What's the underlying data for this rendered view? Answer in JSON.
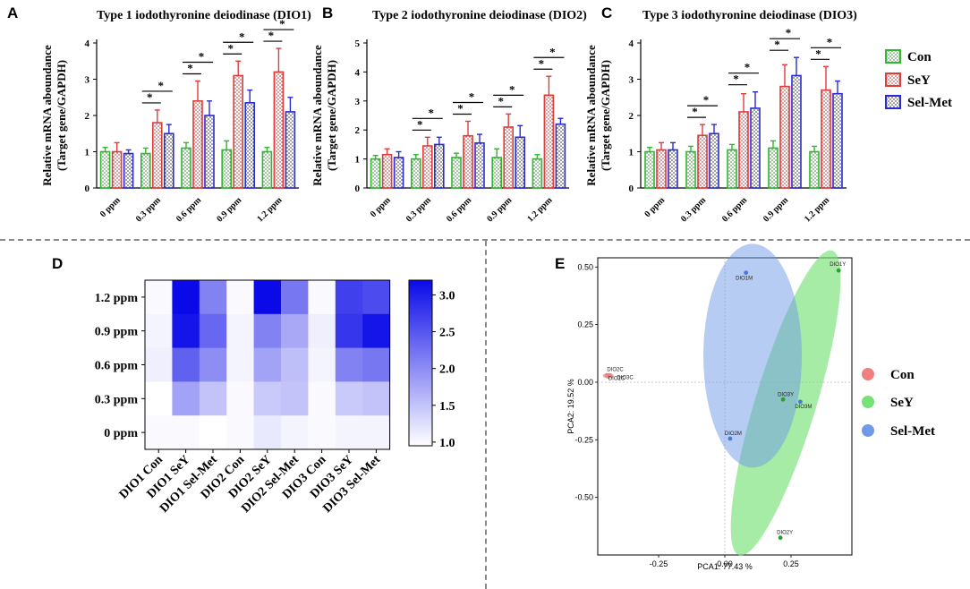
{
  "colors": {
    "con": "#2db82d",
    "sey": "#e23b3b",
    "selmet": "#2a2ad6",
    "heat_low": "#ffffff",
    "heat_high": "#0a0ae8",
    "pca_con": "#f08080",
    "pca_sey": "#77e077",
    "pca_selmet": "#6f9ae8"
  },
  "legend_top": {
    "items": [
      "Con",
      "SeY",
      "Sel-Met"
    ]
  },
  "panel_labels": [
    "A",
    "B",
    "C",
    "D",
    "E"
  ],
  "chart_data": [
    {
      "id": "A",
      "type": "bar",
      "title": "Type 1 iodothyronine deiodinase (DIO1)",
      "ylabel": [
        "Relative mRNA aboundance",
        "(Target gene/GAPDH)"
      ],
      "ylim": [
        0,
        4
      ],
      "yticks": [
        "0",
        "1",
        "2",
        "3",
        "4"
      ],
      "categories": [
        "0 ppm",
        "0.3 ppm",
        "0.6 ppm",
        "0.9 ppm",
        "1.2 ppm"
      ],
      "series": [
        {
          "name": "Con",
          "values": [
            1.0,
            0.95,
            1.1,
            1.05,
            1.0
          ],
          "errors": [
            0.12,
            0.15,
            0.15,
            0.25,
            0.12
          ]
        },
        {
          "name": "SeY",
          "values": [
            1.0,
            1.8,
            2.4,
            3.1,
            3.2
          ],
          "errors": [
            0.25,
            0.35,
            0.55,
            0.4,
            0.65
          ]
        },
        {
          "name": "Sel-Met",
          "values": [
            0.95,
            1.5,
            2.0,
            2.35,
            2.1
          ],
          "errors": [
            0.1,
            0.25,
            0.4,
            0.35,
            0.4
          ]
        }
      ],
      "significance": [
        [
          1,
          2
        ],
        [
          1,
          3
        ],
        [
          2,
          2
        ],
        [
          2,
          3
        ],
        [
          3,
          2
        ],
        [
          3,
          3
        ],
        [
          4,
          2
        ],
        [
          4,
          3
        ]
      ],
      "sig_mark": "*"
    },
    {
      "id": "B",
      "type": "bar",
      "title": "Type 2 iodothyronine deiodinase (DIO2)",
      "ylabel": [
        "Relative mRNA aboundance",
        "(Target gene/GAPDH)"
      ],
      "ylim": [
        0,
        5
      ],
      "yticks": [
        "0",
        "1",
        "2",
        "3",
        "4",
        "5"
      ],
      "categories": [
        "0 ppm",
        "0.3 ppm",
        "0.6 ppm",
        "0.9 ppm",
        "1.2 ppm"
      ],
      "series": [
        {
          "name": "Con",
          "values": [
            1.0,
            1.0,
            1.05,
            1.05,
            1.0
          ],
          "errors": [
            0.12,
            0.15,
            0.15,
            0.3,
            0.15
          ]
        },
        {
          "name": "SeY",
          "values": [
            1.15,
            1.45,
            1.8,
            2.1,
            3.2
          ],
          "errors": [
            0.2,
            0.3,
            0.5,
            0.45,
            0.65
          ]
        },
        {
          "name": "Sel-Met",
          "values": [
            1.05,
            1.5,
            1.55,
            1.75,
            2.2
          ],
          "errors": [
            0.2,
            0.25,
            0.3,
            0.4,
            0.2
          ]
        }
      ],
      "significance": [
        [
          1,
          2
        ],
        [
          1,
          3
        ],
        [
          2,
          2
        ],
        [
          2,
          3
        ],
        [
          3,
          2
        ],
        [
          3,
          3
        ],
        [
          4,
          2
        ],
        [
          4,
          3
        ]
      ],
      "sig_mark": "*"
    },
    {
      "id": "C",
      "type": "bar",
      "title": "Type 3 iodothyronine deiodinase (DIO3)",
      "ylabel": [
        "Relative mRNA aboundance",
        "(Target gene/GAPDH)"
      ],
      "ylim": [
        0,
        4
      ],
      "yticks": [
        "0",
        "1",
        "2",
        "3",
        "4"
      ],
      "categories": [
        "0 ppm",
        "0.3 ppm",
        "0.6 ppm",
        "0.9 ppm",
        "1.2 ppm"
      ],
      "series": [
        {
          "name": "Con",
          "values": [
            1.0,
            1.0,
            1.05,
            1.1,
            1.0
          ],
          "errors": [
            0.12,
            0.15,
            0.15,
            0.2,
            0.15
          ]
        },
        {
          "name": "SeY",
          "values": [
            1.05,
            1.45,
            2.1,
            2.8,
            2.7
          ],
          "errors": [
            0.2,
            0.3,
            0.5,
            0.6,
            0.65
          ]
        },
        {
          "name": "Sel-Met",
          "values": [
            1.05,
            1.5,
            2.2,
            3.1,
            2.6
          ],
          "errors": [
            0.2,
            0.25,
            0.45,
            0.5,
            0.35
          ]
        }
      ],
      "significance": [
        [
          1,
          2
        ],
        [
          1,
          3
        ],
        [
          2,
          2
        ],
        [
          2,
          3
        ],
        [
          3,
          2
        ],
        [
          3,
          3
        ],
        [
          4,
          2
        ],
        [
          4,
          3
        ]
      ],
      "sig_mark": "*"
    },
    {
      "id": "D",
      "type": "heatmap",
      "rows": [
        "1.2 ppm",
        "0.9 ppm",
        "0.6 ppm",
        "0.3 ppm",
        "0 ppm"
      ],
      "columns": [
        "DIO1 Con",
        "DIO1 SeY",
        "DIO1 Sel-Met",
        "DIO2 Con",
        "DIO2 SeY",
        "DIO2 Sel-Met",
        "DIO3 Con",
        "DIO3 SeY",
        "DIO3 Sel-Met"
      ],
      "values": [
        [
          1.0,
          3.2,
          2.1,
          1.0,
          3.2,
          2.2,
          1.0,
          2.7,
          2.6
        ],
        [
          1.05,
          3.1,
          2.35,
          1.05,
          2.1,
          1.75,
          1.1,
          2.8,
          3.1
        ],
        [
          1.1,
          2.4,
          2.0,
          1.05,
          1.8,
          1.55,
          1.05,
          2.1,
          2.2
        ],
        [
          0.95,
          1.8,
          1.5,
          1.0,
          1.45,
          1.5,
          1.0,
          1.45,
          1.5
        ],
        [
          1.0,
          1.0,
          0.95,
          1.0,
          1.15,
          1.05,
          1.0,
          1.05,
          1.05
        ]
      ],
      "colorbar": {
        "range": [
          0.95,
          3.2
        ],
        "ticks": [
          "1.0",
          "1.5",
          "2.0",
          "2.5",
          "3.0"
        ]
      }
    },
    {
      "id": "E",
      "type": "scatter",
      "xlabel": "PCA1: 77.43 %",
      "ylabel": "PCA2: 19.52 %",
      "xlim": [
        -0.48,
        0.48
      ],
      "ylim": [
        -0.75,
        0.54
      ],
      "xticks": [
        "-0.25",
        "0.00",
        "0.25"
      ],
      "yticks": [
        "0.50",
        "0.25",
        "0.00",
        "-0.25",
        "-0.50"
      ],
      "points": [
        {
          "label": "DIO1Y",
          "x": 0.43,
          "y": 0.485,
          "group": "SeY"
        },
        {
          "label": "DIO1M",
          "x": 0.08,
          "y": 0.475,
          "group": "Sel-Met"
        },
        {
          "label": "DIO2C",
          "x": -0.445,
          "y": 0.03,
          "group": "Con"
        },
        {
          "label": "DIO1C",
          "x": -0.44,
          "y": 0.025,
          "group": "Con"
        },
        {
          "label": "DIO3C",
          "x": -0.435,
          "y": 0.03,
          "group": "Con"
        },
        {
          "label": "DIO3Y",
          "x": 0.22,
          "y": -0.075,
          "group": "SeY"
        },
        {
          "label": "DIO3M",
          "x": 0.285,
          "y": -0.085,
          "group": "Sel-Met"
        },
        {
          "label": "DIO2M",
          "x": 0.02,
          "y": -0.245,
          "group": "Sel-Met"
        },
        {
          "label": "DIO2Y",
          "x": 0.21,
          "y": -0.675,
          "group": "SeY"
        }
      ],
      "legend": [
        "Con",
        "SeY",
        "Sel-Met"
      ]
    }
  ]
}
